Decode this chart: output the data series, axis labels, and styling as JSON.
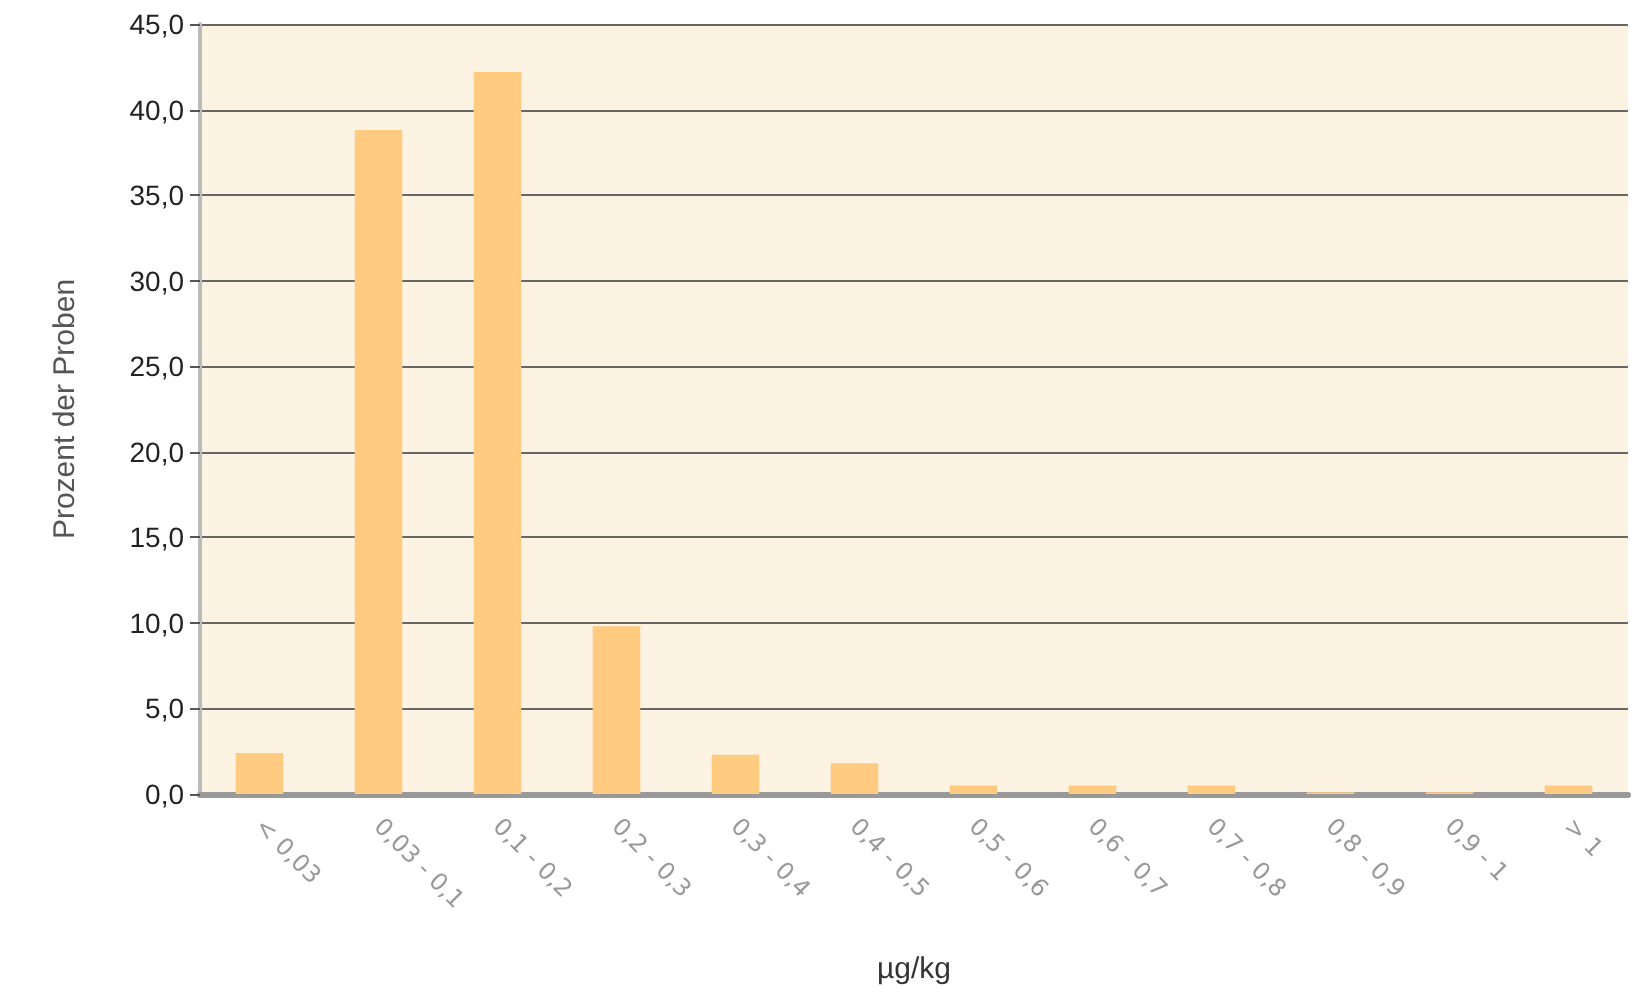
{
  "chart_data": {
    "type": "bar",
    "xlabel": "µg/kg",
    "ylabel": "Prozent der Proben",
    "categories": [
      "< 0,03",
      "0,03 - 0,1",
      "0,1 - 0,2",
      "0,2 - 0,3",
      "0,3 - 0,4",
      "0,4 - 0,5",
      "0,5 - 0,6",
      "0,6 - 0,7",
      "0,7 - 0,8",
      "0,8 - 0,9",
      "0,9 - 1",
      "> 1"
    ],
    "values": [
      2.4,
      38.8,
      42.2,
      9.8,
      2.3,
      1.8,
      0.5,
      0.5,
      0.5,
      0.1,
      0.1,
      0.5
    ],
    "color": "#fecb80",
    "ylim": [
      0,
      45
    ],
    "yticks": [
      {
        "value": 0,
        "label": "0,0"
      },
      {
        "value": 5,
        "label": "5,0"
      },
      {
        "value": 10,
        "label": "10,0"
      },
      {
        "value": 15,
        "label": "15,0"
      },
      {
        "value": 20,
        "label": "20,0"
      },
      {
        "value": 25,
        "label": "25,0"
      },
      {
        "value": 30,
        "label": "30,0"
      },
      {
        "value": 35,
        "label": "35,0"
      },
      {
        "value": 40,
        "label": "40,0"
      },
      {
        "value": 45,
        "label": "45,0"
      }
    ],
    "grid": "y"
  }
}
